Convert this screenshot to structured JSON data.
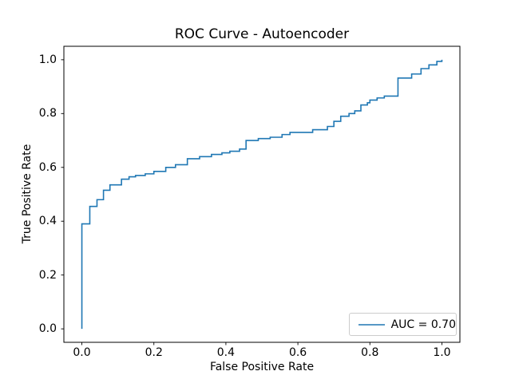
{
  "figure": {
    "background": "#ffffff"
  },
  "chart_data": {
    "type": "line",
    "title": "ROC Curve - Autoencoder",
    "xlabel": "False Positive Rate",
    "ylabel": "True Positive Rate",
    "x_tick_labels": [
      "0.0",
      "0.2",
      "0.4",
      "0.6",
      "0.8",
      "1.0"
    ],
    "y_tick_labels": [
      "0.0",
      "0.2",
      "0.4",
      "0.6",
      "0.8",
      "1.0"
    ],
    "x_tick_values": [
      0.0,
      0.2,
      0.4,
      0.6,
      0.8,
      1.0
    ],
    "y_tick_values": [
      0.0,
      0.2,
      0.4,
      0.6,
      0.8,
      1.0
    ],
    "xlim": [
      -0.05,
      1.05
    ],
    "ylim": [
      -0.05,
      1.05
    ],
    "grid": false,
    "legend": {
      "label": "AUC = 0.70",
      "position": "lower right",
      "auc": 0.7
    },
    "series": [
      {
        "name": "AUC = 0.70",
        "color": "#1f77b4",
        "step": "post",
        "points": [
          [
            0.0,
            0.0
          ],
          [
            0.0,
            0.39
          ],
          [
            0.022,
            0.455
          ],
          [
            0.042,
            0.48
          ],
          [
            0.06,
            0.515
          ],
          [
            0.078,
            0.535
          ],
          [
            0.11,
            0.556
          ],
          [
            0.131,
            0.565
          ],
          [
            0.149,
            0.57
          ],
          [
            0.176,
            0.576
          ],
          [
            0.2,
            0.585
          ],
          [
            0.233,
            0.6
          ],
          [
            0.26,
            0.61
          ],
          [
            0.293,
            0.632
          ],
          [
            0.327,
            0.64
          ],
          [
            0.36,
            0.648
          ],
          [
            0.389,
            0.654
          ],
          [
            0.411,
            0.66
          ],
          [
            0.438,
            0.668
          ],
          [
            0.456,
            0.7
          ],
          [
            0.49,
            0.707
          ],
          [
            0.523,
            0.712
          ],
          [
            0.556,
            0.722
          ],
          [
            0.578,
            0.73
          ],
          [
            0.641,
            0.74
          ],
          [
            0.682,
            0.752
          ],
          [
            0.7,
            0.771
          ],
          [
            0.719,
            0.79
          ],
          [
            0.742,
            0.8
          ],
          [
            0.758,
            0.81
          ],
          [
            0.775,
            0.832
          ],
          [
            0.793,
            0.84
          ],
          [
            0.8,
            0.85
          ],
          [
            0.82,
            0.858
          ],
          [
            0.84,
            0.865
          ],
          [
            0.878,
            0.932
          ],
          [
            0.916,
            0.947
          ],
          [
            0.942,
            0.967
          ],
          [
            0.964,
            0.981
          ],
          [
            0.986,
            0.994
          ],
          [
            1.0,
            1.0
          ]
        ]
      }
    ]
  },
  "colors": {
    "line": "#1f77b4",
    "text": "#000000",
    "spine": "#000000",
    "legend_border": "#cccccc"
  }
}
